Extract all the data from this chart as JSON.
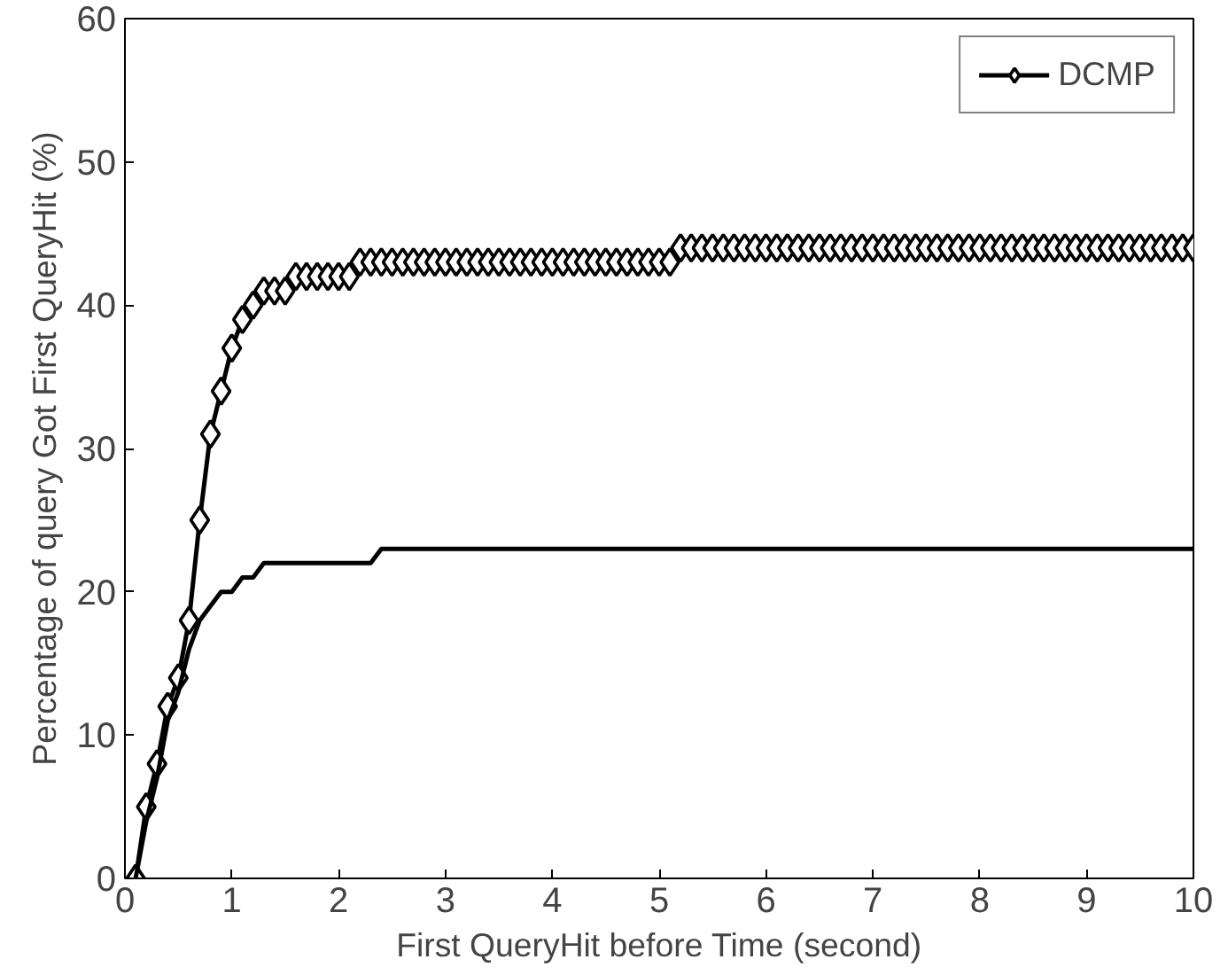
{
  "chart_data": {
    "type": "line",
    "xlabel": "First QueryHit before Time (second)",
    "ylabel": "Percentage of query Got First QueryHit (%)",
    "xlim": [
      0,
      10
    ],
    "xticks": [
      0,
      1,
      2,
      3,
      4,
      5,
      6,
      7,
      8,
      9,
      10
    ],
    "ylim": [
      0,
      60
    ],
    "yticks": [
      0,
      10,
      20,
      30,
      40,
      50,
      60
    ],
    "grid": false,
    "legend": "top right",
    "line_style": "solid",
    "series": [
      {
        "name": "DCMP",
        "color": "#000000",
        "marker": "diamond",
        "x": [
          0.1,
          0.2,
          0.3,
          0.4,
          0.5,
          0.6,
          0.7,
          0.8,
          0.9,
          1.0,
          1.1,
          1.2,
          1.3,
          1.4,
          1.5,
          1.6,
          1.7,
          1.8,
          1.9,
          2.0,
          2.1,
          2.2,
          2.3,
          2.4,
          2.5,
          2.6,
          2.7,
          2.8,
          2.9,
          3.0,
          3.1,
          3.2,
          3.3,
          3.4,
          3.5,
          3.6,
          3.7,
          3.8,
          3.9,
          4.0,
          4.1,
          4.2,
          4.3,
          4.4,
          4.5,
          4.6,
          4.7,
          4.8,
          4.9,
          5.0,
          5.1,
          5.2,
          5.3,
          5.4,
          5.5,
          5.6,
          5.7,
          5.8,
          5.9,
          6.0,
          6.1,
          6.2,
          6.3,
          6.4,
          6.5,
          6.6,
          6.7,
          6.8,
          6.9,
          7.0,
          7.1,
          7.2,
          7.3,
          7.4,
          7.5,
          7.6,
          7.7,
          7.8,
          7.9,
          8.0,
          8.1,
          8.2,
          8.3,
          8.4,
          8.5,
          8.6,
          8.7,
          8.8,
          8.9,
          9.0,
          9.1,
          9.2,
          9.3,
          9.4,
          9.5,
          9.6,
          9.7,
          9.8,
          9.9,
          10.0
        ],
        "values": [
          0,
          5,
          8,
          12,
          14,
          18,
          25,
          31,
          34,
          37,
          39,
          40,
          41,
          41,
          41,
          42,
          42,
          42,
          42,
          42,
          42,
          43,
          43,
          43,
          43,
          43,
          43,
          43,
          43,
          43,
          43,
          43,
          43,
          43,
          43,
          43,
          43,
          43,
          43,
          43,
          43,
          43,
          43,
          43,
          43,
          43,
          43,
          43,
          43,
          43,
          43,
          44,
          44,
          44,
          44,
          44,
          44,
          44,
          44,
          44,
          44,
          44,
          44,
          44,
          44,
          44,
          44,
          44,
          44,
          44,
          44,
          44,
          44,
          44,
          44,
          44,
          44,
          44,
          44,
          44,
          44,
          44,
          44,
          44,
          44,
          44,
          44,
          44,
          44,
          44,
          44,
          44,
          44,
          44,
          44,
          44,
          44,
          44,
          44,
          44
        ]
      },
      {
        "color": "#000000",
        "marker": "none",
        "x": [
          0.1,
          0.2,
          0.3,
          0.4,
          0.5,
          0.6,
          0.7,
          0.8,
          0.9,
          1.0,
          1.1,
          1.2,
          1.3,
          2.3,
          2.4,
          10.0
        ],
        "values": [
          0,
          4,
          7,
          11,
          13,
          16,
          18,
          19,
          20,
          20,
          21,
          21,
          22,
          22,
          23,
          23
        ]
      }
    ]
  }
}
